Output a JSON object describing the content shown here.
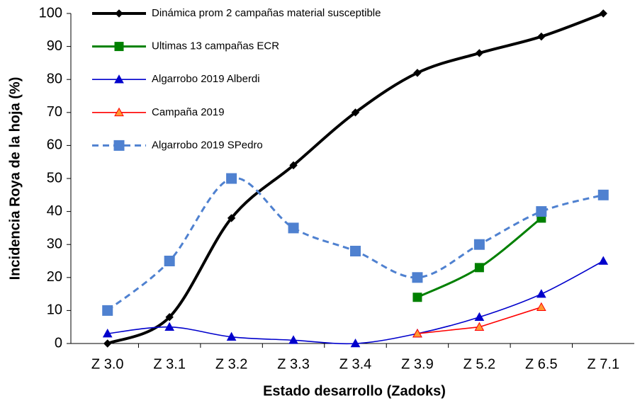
{
  "chart_data": {
    "type": "line",
    "x_label": "Estado desarrollo (Zadoks)",
    "y_label": "Incidencia Roya de la hoja (%)",
    "categories": [
      "Z 3.0",
      "Z 3.1",
      "Z 3.2",
      "Z 3.3",
      "Z 3.4",
      "Z 3.9",
      "Z 5.2",
      "Z 6.5",
      "Z 7.1"
    ],
    "series": [
      {
        "name": "Dinámica prom 2 campañas material susceptible",
        "color": "#000000",
        "marker": "diamond",
        "smooth": true,
        "values": [
          0,
          8,
          38,
          54,
          70,
          82,
          88,
          93,
          100
        ]
      },
      {
        "name": "Ultimas 13 campañas ECR",
        "color": "#008000",
        "marker": "square",
        "smooth": true,
        "values": [
          null,
          null,
          null,
          null,
          null,
          14,
          23,
          38,
          null
        ]
      },
      {
        "name": "Algarrobo 2019 Alberdi",
        "color": "#0000cc",
        "marker": "triangle",
        "smooth": true,
        "values": [
          3,
          5,
          2,
          1,
          0,
          3,
          8,
          15,
          25
        ]
      },
      {
        "name": "Campaña 2019",
        "color": "#ff0000",
        "marker": "triangle",
        "marker_fill": "#ff9933",
        "smooth": false,
        "values": [
          null,
          null,
          null,
          null,
          null,
          3,
          5,
          11,
          null
        ]
      },
      {
        "name": "Algarrobo 2019 SPedro",
        "color": "#4f81d0",
        "marker": "square",
        "dashed": true,
        "smooth": true,
        "values": [
          10,
          25,
          50,
          35,
          28,
          20,
          30,
          40,
          45
        ]
      }
    ],
    "ylim": [
      0,
      100
    ],
    "yticks": [
      0,
      10,
      20,
      30,
      40,
      50,
      60,
      70,
      80,
      90,
      100
    ],
    "grid": false,
    "legend": "upper left"
  }
}
